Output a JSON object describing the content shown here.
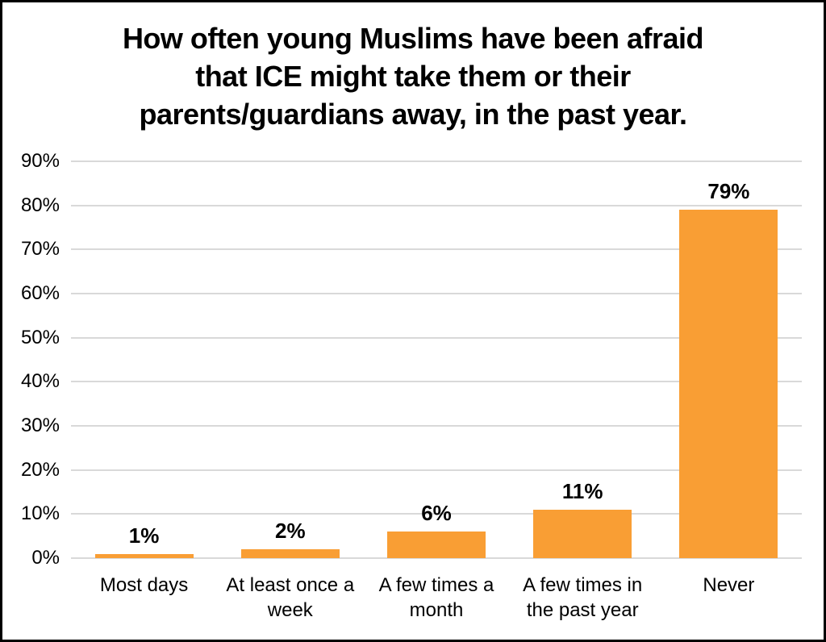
{
  "chart_data": {
    "type": "bar",
    "title": "How often young Muslims have been afraid that ICE might take them or their parents/guardians away, in the past year.",
    "title_lines": [
      "How often young Muslims have been afraid",
      "that ICE might take them or their",
      "parents/guardians away, in the past year."
    ],
    "categories": [
      "Most days",
      "At least once a week",
      "A few times a month",
      "A few times in the past year",
      "Never"
    ],
    "values": [
      1,
      2,
      6,
      11,
      79
    ],
    "value_labels": [
      "1%",
      "2%",
      "6%",
      "11%",
      "79%"
    ],
    "y_tick_labels": [
      "0%",
      "10%",
      "20%",
      "30%",
      "40%",
      "50%",
      "60%",
      "70%",
      "80%",
      "90%"
    ],
    "ylim": [
      0,
      90
    ],
    "y_step": 10,
    "xlabel": "",
    "ylabel": "",
    "legend_position": "none",
    "grid": "horizontal",
    "bar_color": "#F99E34",
    "gridline_color": "#D9D9D9",
    "text_color": "#000000",
    "background_color": "#FFFFFF",
    "frame_border_color": "#000000"
  }
}
